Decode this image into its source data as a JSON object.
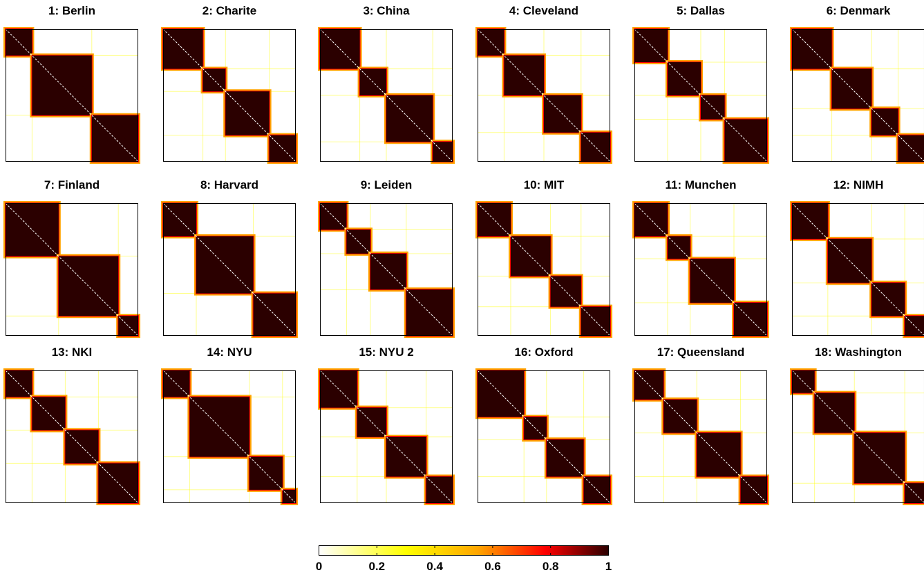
{
  "chart_data": {
    "type": "heatmap",
    "description_free": true,
    "colormap": "hot-reversed",
    "colors": [
      "#ffffff",
      "#ffff00",
      "#ffa500",
      "#ff0000",
      "#2b0000"
    ],
    "colorbar": {
      "range": [
        0,
        1
      ],
      "ticks": [
        "0",
        "0.2",
        "0.4",
        "0.6",
        "0.8",
        "1"
      ],
      "tick_values": [
        0,
        0.2,
        0.4,
        0.6,
        0.8,
        1
      ]
    },
    "panels": [
      {
        "title": "1: Berlin",
        "blocks": [
          0,
          0.2,
          0.65,
          1
        ]
      },
      {
        "title": "2: Charite",
        "blocks": [
          0,
          0.3,
          0.47,
          0.8,
          1
        ]
      },
      {
        "title": "3: China",
        "blocks": [
          0,
          0.3,
          0.5,
          0.85,
          1
        ]
      },
      {
        "title": "4: Cleveland",
        "blocks": [
          0,
          0.2,
          0.5,
          0.78,
          1
        ]
      },
      {
        "title": "5: Dallas",
        "blocks": [
          0,
          0.25,
          0.5,
          0.68,
          1
        ]
      },
      {
        "title": "6: Denmark",
        "blocks": [
          0,
          0.3,
          0.6,
          0.8,
          1
        ]
      },
      {
        "title": "7: Finland",
        "blocks": [
          0,
          0.4,
          0.85,
          1
        ]
      },
      {
        "title": "8: Harvard",
        "blocks": [
          0,
          0.25,
          0.68,
          1
        ]
      },
      {
        "title": "9: Leiden",
        "blocks": [
          0,
          0.2,
          0.38,
          0.65,
          1
        ]
      },
      {
        "title": "10: MIT",
        "blocks": [
          0,
          0.25,
          0.55,
          0.78,
          1
        ]
      },
      {
        "title": "11: Munchen",
        "blocks": [
          0,
          0.25,
          0.42,
          0.75,
          1
        ]
      },
      {
        "title": "12: NIMH",
        "blocks": [
          0,
          0.27,
          0.6,
          0.85,
          1
        ]
      },
      {
        "title": "13: NKI",
        "blocks": [
          0,
          0.2,
          0.45,
          0.7,
          1
        ]
      },
      {
        "title": "14: NYU",
        "blocks": [
          0,
          0.2,
          0.65,
          0.9,
          1
        ]
      },
      {
        "title": "15: NYU 2",
        "blocks": [
          0,
          0.28,
          0.5,
          0.8,
          1
        ]
      },
      {
        "title": "16: Oxford",
        "blocks": [
          0,
          0.35,
          0.52,
          0.8,
          1
        ]
      },
      {
        "title": "17: Queensland",
        "blocks": [
          0,
          0.22,
          0.47,
          0.8,
          1
        ]
      },
      {
        "title": "18: Washington",
        "blocks": [
          0,
          0.17,
          0.47,
          0.85,
          1
        ]
      }
    ]
  }
}
